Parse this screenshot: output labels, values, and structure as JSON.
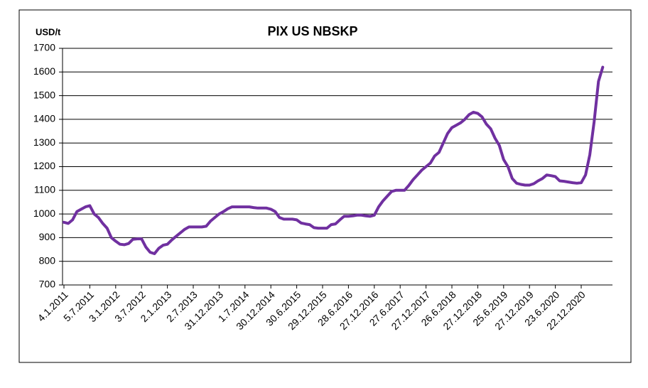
{
  "chart_data": {
    "type": "line",
    "title": "PIX US NBSKP",
    "y_label": "USD/t",
    "categories": [
      "4.1.2011",
      null,
      null,
      null,
      null,
      null,
      "5.7.2011",
      null,
      null,
      null,
      null,
      null,
      "3.1.2012",
      null,
      null,
      null,
      null,
      null,
      "3.7.2012",
      null,
      null,
      null,
      null,
      null,
      "2.1.2013",
      null,
      null,
      null,
      null,
      null,
      "2.7.2013",
      null,
      null,
      null,
      null,
      null,
      "31.12.2013",
      null,
      null,
      null,
      null,
      null,
      "1.7.2014",
      null,
      null,
      null,
      null,
      null,
      "30.12.2014",
      null,
      null,
      null,
      null,
      null,
      "30.6.2015",
      null,
      null,
      null,
      null,
      null,
      "29.12.2015",
      null,
      null,
      null,
      null,
      null,
      "28.6.2016",
      null,
      null,
      null,
      null,
      null,
      "27.12.2016",
      null,
      null,
      null,
      null,
      null,
      "27.6.2017",
      null,
      null,
      null,
      null,
      null,
      "27.12.2017",
      null,
      null,
      null,
      null,
      null,
      "26.6.2018",
      null,
      null,
      null,
      null,
      null,
      "27.12.2018",
      null,
      null,
      null,
      null,
      null,
      "25.6.2019",
      null,
      null,
      null,
      null,
      null,
      "27.12.2019",
      null,
      null,
      null,
      null,
      null,
      "23.6.2020",
      null,
      null,
      null,
      null,
      null,
      "22.12.2020",
      null,
      null,
      null,
      null,
      null
    ],
    "series": [
      {
        "name": "PIX US NBSKP",
        "color": "#7030a0",
        "values": [
          965,
          960,
          975,
          1010,
          1020,
          1030,
          1035,
          1000,
          985,
          960,
          940,
          900,
          885,
          872,
          870,
          875,
          893,
          895,
          895,
          860,
          838,
          832,
          855,
          868,
          872,
          890,
          905,
          920,
          935,
          945,
          945,
          945,
          945,
          948,
          970,
          985,
          1000,
          1010,
          1022,
          1030,
          1030,
          1030,
          1030,
          1030,
          1027,
          1025,
          1025,
          1025,
          1020,
          1010,
          985,
          978,
          978,
          978,
          975,
          962,
          958,
          955,
          942,
          940,
          940,
          940,
          955,
          958,
          975,
          990,
          990,
          992,
          995,
          995,
          992,
          990,
          995,
          1030,
          1055,
          1075,
          1095,
          1100,
          1100,
          1100,
          1120,
          1145,
          1165,
          1185,
          1200,
          1215,
          1245,
          1260,
          1300,
          1340,
          1365,
          1375,
          1385,
          1400,
          1420,
          1430,
          1425,
          1410,
          1380,
          1360,
          1320,
          1290,
          1230,
          1200,
          1150,
          1130,
          1125,
          1122,
          1122,
          1128,
          1140,
          1150,
          1165,
          1162,
          1158,
          1140,
          1138,
          1135,
          1132,
          1130,
          1132,
          1165,
          1250,
          1390,
          1560,
          1620
        ]
      }
    ],
    "ylim": [
      700,
      1700
    ],
    "yticks": [
      700,
      800,
      900,
      1000,
      1100,
      1200,
      1300,
      1400,
      1500,
      1600,
      1700
    ],
    "grid": true,
    "legend": false
  }
}
